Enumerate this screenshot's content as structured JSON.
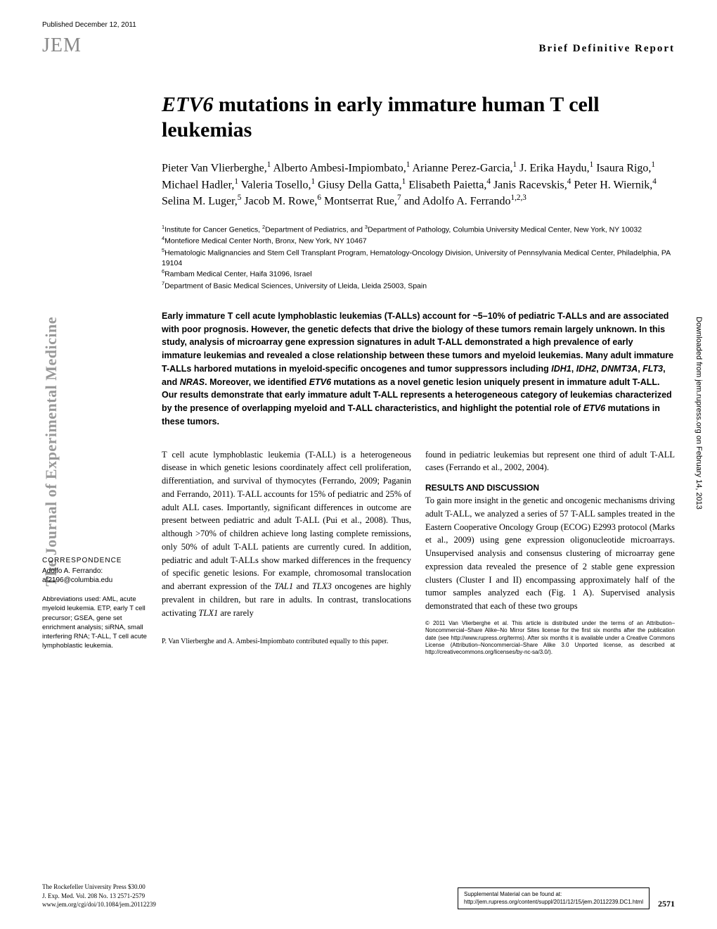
{
  "meta": {
    "published_date": "Published December 12, 2011",
    "journal_logo": "JEM",
    "report_type": "Brief Definitive Report"
  },
  "title": {
    "italic_part": "ETV6",
    "rest": " mutations in early immature human T cell leukemias"
  },
  "authors_html": "Pieter Van Vlierberghe,<sup>1</sup> Alberto Ambesi-Impiombato,<sup>1</sup> Arianne Perez-Garcia,<sup>1</sup> J. Erika Haydu,<sup>1</sup> Isaura Rigo,<sup>1</sup> Michael Hadler,<sup>1</sup> Valeria Tosello,<sup>1</sup> Giusy Della Gatta,<sup>1</sup> Elisabeth Paietta,<sup>4</sup> Janis Racevskis,<sup>4</sup> Peter H. Wiernik,<sup>4</sup> Selina M. Luger,<sup>5</sup> Jacob M. Rowe,<sup>6</sup> Montserrat Rue,<sup>7</sup> and Adolfo A. Ferrando<sup>1,2,3</sup>",
  "affiliations": [
    "<sup>1</sup>Institute for Cancer Genetics, <sup>2</sup>Department of Pediatrics, and <sup>3</sup>Department of Pathology, Columbia University Medical Center, New York, NY 10032",
    "<sup>4</sup>Montefiore Medical Center North, Bronx, New York, NY 10467",
    "<sup>5</sup>Hematologic Malignancies and Stem Cell Transplant Program, Hematology-Oncology Division, University of Pennsylvania Medical Center, Philadelphia, PA 19104",
    "<sup>6</sup>Rambam Medical Center, Haifa 31096, Israel",
    "<sup>7</sup>Department of Basic Medical Sciences, University of Lleida, Lleida 25003, Spain"
  ],
  "abstract": "Early immature T cell acute lymphoblastic leukemias (T-ALLs) account for ~5–10% of pediatric T-ALLs and are associated with poor prognosis. However, the genetic defects that drive the biology of these tumors remain largely unknown. In this study, analysis of microarray gene expression signatures in adult T-ALL demonstrated a high prevalence of early immature leukemias and revealed a close relationship between these tumors and myeloid leukemias. Many adult immature T-ALLs harbored mutations in myeloid-specific oncogenes and tumor suppressors including <span class='gene'>IDH1</span>, <span class='gene'>IDH2</span>, <span class='gene'>DNMT3A</span>, <span class='gene'>FLT3</span>, and <span class='gene'>NRAS</span>. Moreover, we identified <span class='gene'>ETV6</span> mutations as a novel genetic lesion uniquely present in immature adult T-ALL. Our results demonstrate that early immature adult T-ALL represents a heterogeneous category of leukemias characterized by the presence of overlapping myeloid and T-ALL characteristics, and highlight the potential role of <span class='gene'>ETV6</span> mutations in these tumors.",
  "sidebar": {
    "left": "The Journal of Experimental Medicine",
    "right": "Downloaded from jem.rupress.org on February 14, 2013"
  },
  "correspondence": {
    "label": "CORRESPONDENCE",
    "name": "Adolfo A. Ferrando:",
    "email": "af2196@columbia.edu",
    "abbrev": "Abbreviations used: AML, acute myeloid leukemia. ETP, early T cell precursor; GSEA, gene set enrichment analysis; siRNA, small interfering RNA; T-ALL, T cell acute lymphoblastic leukemia."
  },
  "body": {
    "col1": "T cell acute lymphoblastic leukemia (T-ALL) is a heterogeneous disease in which genetic lesions coordinately affect cell proliferation, differentiation, and survival of thymocytes (Ferrando, 2009; Paganin and Ferrando, 2011). T-ALL accounts for 15% of pediatric and 25% of adult ALL cases. Importantly, significant differences in outcome are present between pediatric and adult T-ALL (Pui et al., 2008). Thus, although >70% of children achieve long lasting complete remissions, only 50% of adult T-ALL patients are currently cured. In addition, pediatric and adult T-ALLs show marked differences in the frequency of specific genetic lesions. For example, chromosomal translocation and aberrant expression of the <i>TAL1</i> and <i>TLX3</i> oncogenes are highly prevalent in children, but rare in adults. In contrast, translocations activating <i>TLX1</i> are rarely",
    "contrib": "P. Van Vlierberghe and A. Ambesi-Impiombato contributed equally to this paper.",
    "col2_top": "found in pediatric leukemias but represent one third of adult T-ALL cases (Ferrando et al., 2002, 2004).",
    "section_head": "RESULTS AND DISCUSSION",
    "col2_body": "To gain more insight in the genetic and oncogenic mechanisms driving adult T-ALL, we analyzed a series of 57 T-ALL samples treated in the Eastern Cooperative Oncology Group (ECOG) E2993 protocol (Marks et al., 2009) using gene expression oligonucleotide microarrays. Unsupervised analysis and consensus clustering of microarray gene expression data revealed the presence of 2 stable gene expression clusters (Cluster I and II) encompassing approximately half of the tumor samples analyzed each (Fig. 1 A). Supervised analysis demonstrated that each of these two groups",
    "copyright": "© 2011 Van Vlierberghe et al. This article is distributed under the terms of an Attribution–Noncommercial–Share Alike–No Mirror Sites license for the first six months after the publication date (see http://www.rupress.org/terms). After six months it is available under a Creative Commons License (Attribution–Noncommercial–Share Alike 3.0 Unported license, as described at http://creativecommons.org/licenses/by-nc-sa/3.0/)."
  },
  "footer": {
    "publisher": "The Rockefeller University Press   $30.00",
    "citation": "J. Exp. Med. Vol. 208 No. 13   2571-2579",
    "doi": "www.jem.org/cgi/doi/10.1084/jem.20112239",
    "supp_label": "Supplemental Material can be found at:",
    "supp_url": "http://jem.rupress.org/content/suppl/2011/12/15/jem.20112239.DC1.html",
    "page_number": "2571"
  }
}
